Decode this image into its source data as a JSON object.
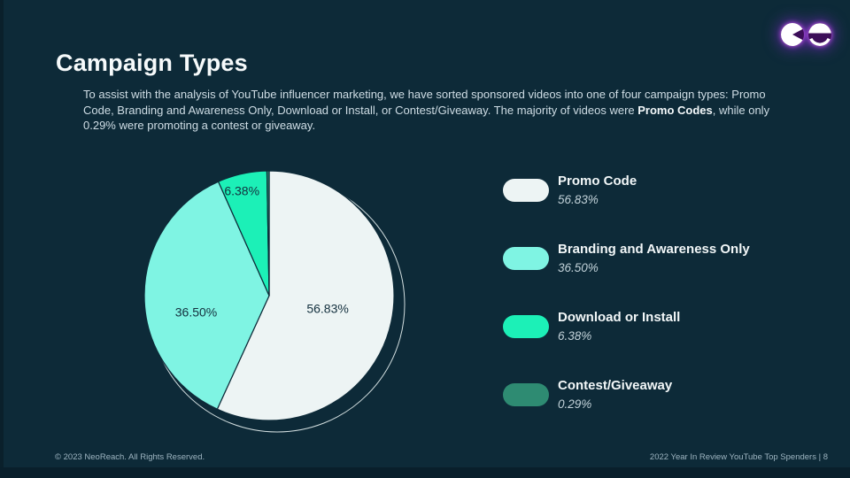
{
  "slide": {
    "title": "Campaign Types",
    "intro": {
      "part1": "To assist with the analysis of YouTube influencer marketing, we have sorted sponsored videos into one of four campaign types: Promo Code, Branding and Awareness Only, Download or Install, or Contest/Giveaway. The majority of videos were ",
      "bold": "Promo Codes",
      "part2": ", while only 0.29% were promoting a contest or giveaway."
    },
    "footer": {
      "left": "© 2023 NeoReach. All Rights Reserved.",
      "right": "2022 Year In Review YouTube Top Spenders | 8"
    },
    "logo_icon": "neoreach-logo"
  },
  "colors": {
    "background": "#0d2a38",
    "bottom_strip": "#091f2b",
    "title_text": "#f6fafb",
    "body_text": "#cfdde5",
    "muted_text": "#9db4c0",
    "pie_label_text": "#14303e",
    "ring_outline": "#e8f2f2",
    "logo_glow": "#a92be0"
  },
  "chart_data": {
    "type": "pie",
    "title": "Campaign Types",
    "start_angle_deg": 0,
    "direction": "clockwise",
    "slices": [
      {
        "label": "Promo Code",
        "value": 56.83,
        "display": "56.83%",
        "color": "#edf4f4"
      },
      {
        "label": "Branding and Awareness Only",
        "value": 36.5,
        "display": "36.50%",
        "color": "#7ff4e3"
      },
      {
        "label": "Download or Install",
        "value": 6.38,
        "display": "6.38%",
        "color": "#1cf0b7"
      },
      {
        "label": "Contest/Giveaway",
        "value": 0.29,
        "display": "0.29%",
        "color": "#2e8b72"
      }
    ],
    "inside_labels": [
      "56.83%",
      "36.50%",
      "6.38%"
    ],
    "legend_position": "right"
  }
}
